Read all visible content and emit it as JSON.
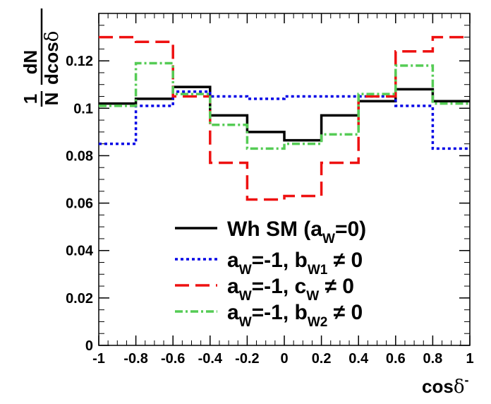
{
  "chart_data": {
    "type": "line",
    "step": true,
    "x_edges": [
      -1,
      -0.8,
      -0.6,
      -0.4,
      -0.2,
      0,
      0.2,
      0.4,
      0.6,
      0.8,
      1
    ],
    "xlim": [
      -1,
      1
    ],
    "ylim": [
      0,
      0.14
    ],
    "x_ticks": [
      "-1",
      "-0.8",
      "-0.6",
      "-0.4",
      "-0.2",
      "0",
      "0.2",
      "0.4",
      "0.6",
      "0.8",
      "1"
    ],
    "x_tick_values": [
      -1,
      -0.8,
      -0.6,
      -0.4,
      -0.2,
      0,
      0.2,
      0.4,
      0.6,
      0.8,
      1
    ],
    "y_ticks": [
      "0",
      "0.02",
      "0.04",
      "0.06",
      "0.08",
      "0.1",
      "0.12"
    ],
    "y_tick_values": [
      0,
      0.02,
      0.04,
      0.06,
      0.08,
      0.1,
      0.12
    ],
    "xlabel": {
      "main": "cos",
      "greek": "δ",
      "sup": "-"
    },
    "ylabel": {
      "num_1": "1",
      "den_1": "N",
      "num_2": "dN",
      "den_2": "dcos",
      "den_2_greek": "δ"
    },
    "legend_position": "bottom-center",
    "series": [
      {
        "name": "Wh SM",
        "legend": {
          "pre": "Wh SM (a",
          "sub": "W",
          "post": "=0)"
        },
        "color": "#000000",
        "dash": "",
        "values": [
          0.102,
          0.104,
          0.109,
          0.097,
          0.09,
          0.0865,
          0.097,
          0.103,
          0.108,
          0.103
        ]
      },
      {
        "name": "b_W1",
        "legend": {
          "pre": "a",
          "sub": "W",
          "mid": "=-1, b",
          "sub2": "W1",
          "post": " ≠ 0"
        },
        "color": "#0000e6",
        "dash": "4,4",
        "values": [
          0.085,
          0.101,
          0.107,
          0.105,
          0.104,
          0.105,
          0.105,
          0.105,
          0.101,
          0.083
        ]
      },
      {
        "name": "c_W",
        "legend": {
          "pre": "a",
          "sub": "W",
          "mid": "=-1, c",
          "sub2": "W",
          "post": " ≠ 0"
        },
        "color": "#ee1111",
        "dash": "20,9",
        "values": [
          0.13,
          0.128,
          0.105,
          0.077,
          0.0615,
          0.063,
          0.077,
          0.105,
          0.124,
          0.13
        ]
      },
      {
        "name": "b_W2",
        "legend": {
          "pre": "a",
          "sub": "W",
          "mid": "=-1, b",
          "sub2": "W2",
          "post": " ≠ 0"
        },
        "color": "#55cc55",
        "dash": "11,4,3,4",
        "values": [
          0.101,
          0.119,
          0.106,
          0.093,
          0.083,
          0.085,
          0.089,
          0.106,
          0.118,
          0.102
        ]
      }
    ]
  }
}
